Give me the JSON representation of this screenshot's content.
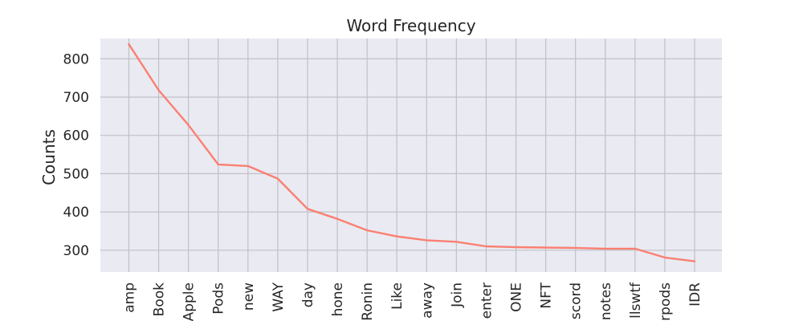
{
  "chart_data": {
    "type": "line",
    "title": "Word Frequency",
    "xlabel": "",
    "ylabel": "Counts",
    "ylim": [
      243,
      853
    ],
    "yticks": [
      300,
      400,
      500,
      600,
      700,
      800
    ],
    "categories": [
      "amp",
      "Book",
      "Apple",
      "Pods",
      "new",
      "WAY",
      "day",
      "hone",
      "Ronin",
      "Like",
      "away",
      "Join",
      "enter",
      "ONE",
      "NFT",
      "scord",
      "notes",
      "llswtf",
      "rpods",
      "IDR"
    ],
    "values": [
      838,
      718,
      627,
      524,
      520,
      487,
      408,
      382,
      352,
      336,
      326,
      322,
      310,
      308,
      307,
      306,
      304,
      304,
      281,
      271
    ],
    "grid": true,
    "line_color": "#fa8072",
    "background_color": "#eaeaf2"
  }
}
